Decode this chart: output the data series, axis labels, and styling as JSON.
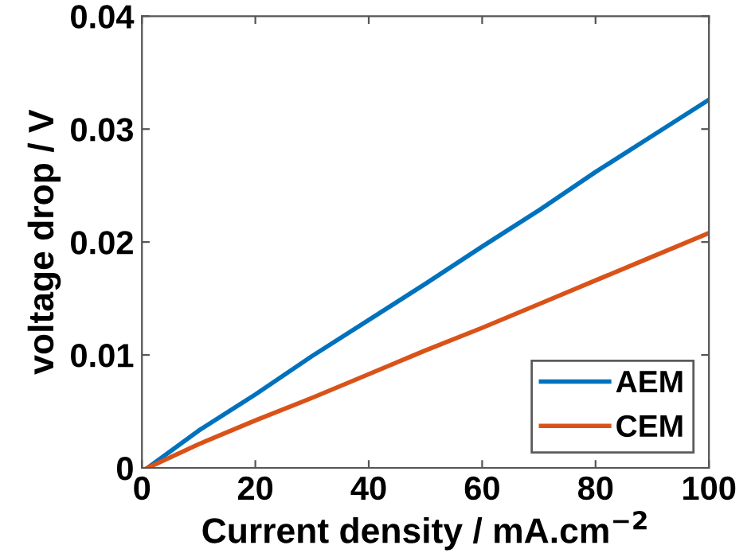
{
  "chart_data": {
    "type": "line",
    "xlabel": "Current density / mA.cm$^{−2}$",
    "ylabel": "voltage drop / V",
    "series": [
      {
        "name": "AEM",
        "color": "#0072bd",
        "x": [
          1,
          10,
          20,
          30,
          40,
          50,
          60,
          70,
          80,
          90,
          100
        ],
        "values": [
          0,
          0.0033,
          0.0065,
          0.0099,
          0.0131,
          0.0163,
          0.0196,
          0.0228,
          0.0262,
          0.0294,
          0.0326
        ]
      },
      {
        "name": "CEM",
        "color": "#d95319",
        "x": [
          1,
          10,
          20,
          30,
          40,
          50,
          60,
          70,
          80,
          90,
          100
        ],
        "values": [
          0,
          0.0021,
          0.0042,
          0.0062,
          0.0083,
          0.0104,
          0.0124,
          0.0145,
          0.0166,
          0.0187,
          0.0208
        ]
      }
    ],
    "xlim": [
      0,
      100
    ],
    "xticks": [
      0,
      20,
      40,
      60,
      80,
      100
    ],
    "ylim": [
      0,
      0.04
    ],
    "yticks": [
      0,
      0.01,
      0.02,
      0.03,
      0.04
    ],
    "legend": "bottom right",
    "grid": false,
    "line_style": "solid",
    "marker": "none"
  }
}
